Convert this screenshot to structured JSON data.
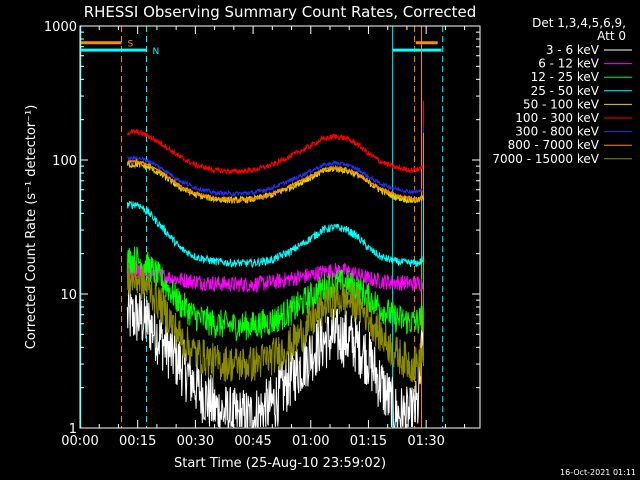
{
  "chart_data": {
    "type": "line",
    "title": "RHESSI Observing Summary Count Rates, Corrected",
    "xlabel": "Start Time (25-Aug-10 23:59:02)",
    "ylabel": "Corrected Count Rate (s⁻¹ detector⁻¹)",
    "xlim": [
      0,
      104
    ],
    "ylim": [
      1,
      1000
    ],
    "yscale": "log",
    "x_ticks": [
      {
        "value": 0,
        "label": "00:00"
      },
      {
        "value": 15,
        "label": "00:15"
      },
      {
        "value": 30,
        "label": "00:30"
      },
      {
        "value": 45,
        "label": "00:45"
      },
      {
        "value": 60,
        "label": "01:00"
      },
      {
        "value": 75,
        "label": "01:15"
      },
      {
        "value": 90,
        "label": "01:30"
      }
    ],
    "y_ticks": [
      {
        "value": 1,
        "label": "1"
      },
      {
        "value": 10,
        "label": "10"
      },
      {
        "value": 100,
        "label": "100"
      },
      {
        "value": 1000,
        "label": "1000"
      }
    ],
    "legend_header": [
      "Det 1,3,4,5,6,9,",
      "Att 0"
    ],
    "legend_position": "right",
    "timestamp": "16-Oct-2021 01:11",
    "data_start": 12.3,
    "data_end": 89.3,
    "x": [
      12.3,
      15,
      18,
      22,
      26,
      30,
      35,
      40,
      45,
      50,
      55,
      60,
      63,
      66,
      69,
      72,
      75,
      78,
      82,
      86,
      88,
      89.3
    ],
    "series": [
      {
        "name": "3 - 6 keV",
        "color": "#ffffff",
        "noise": 0.45,
        "values": [
          6.8,
          6.7,
          6.0,
          4.2,
          3.0,
          2.1,
          1.4,
          1.2,
          1.2,
          1.5,
          2.4,
          3.6,
          4.4,
          4.8,
          4.7,
          4.2,
          3.3,
          2.2,
          1.3,
          1.2,
          1.5,
          6.0
        ]
      },
      {
        "name": "6 - 12 keV",
        "color": "#ff00ff",
        "noise": 0.12,
        "values": [
          14.5,
          15.0,
          14.5,
          13.5,
          12.8,
          12.4,
          12.0,
          11.8,
          11.8,
          12.2,
          13.0,
          13.8,
          14.6,
          15.0,
          14.8,
          14.0,
          13.0,
          12.5,
          12.2,
          12.0,
          12.0,
          12.0
        ]
      },
      {
        "name": "12 - 25 keV",
        "color": "#00ff00",
        "noise": 0.22,
        "values": [
          18.0,
          18.0,
          16.0,
          12.0,
          8.5,
          6.8,
          6.0,
          5.8,
          5.8,
          6.3,
          7.5,
          9.5,
          11.0,
          12.0,
          12.0,
          11.0,
          9.5,
          8.0,
          6.6,
          6.2,
          6.2,
          7.0
        ]
      },
      {
        "name": "25 - 50 keV",
        "color": "#00ffff",
        "noise": 0.06,
        "values": [
          46.0,
          47.0,
          40.0,
          30.0,
          22.0,
          19.0,
          17.5,
          17.0,
          17.0,
          18.0,
          21.0,
          26.0,
          30.0,
          31.5,
          30.5,
          27.0,
          22.0,
          19.0,
          17.5,
          17.0,
          17.0,
          18.0
        ]
      },
      {
        "name": "50 - 100 keV",
        "color": "#e0d000",
        "noise": 0.05,
        "values": [
          92.0,
          93.0,
          88.0,
          75.0,
          62.0,
          55.0,
          51.0,
          50.0,
          51.0,
          55.0,
          63.0,
          74.0,
          82.0,
          86.0,
          84.0,
          78.0,
          68.0,
          60.0,
          53.0,
          50.0,
          50.0,
          52.0
        ]
      },
      {
        "name": "100 - 300 keV",
        "color": "#ff0000",
        "noise": 0.04,
        "values": [
          160.0,
          162.0,
          150.0,
          128.0,
          105.0,
          92.0,
          84.0,
          82.0,
          84.0,
          92.0,
          108.0,
          128.0,
          143.0,
          150.0,
          146.0,
          132.0,
          112.0,
          98.0,
          88.0,
          84.0,
          85.0,
          92.0
        ]
      },
      {
        "name": "300 - 800 keV",
        "color": "#2030ff",
        "noise": 0.03,
        "values": [
          102.0,
          104.0,
          98.0,
          84.0,
          70.0,
          62.0,
          57.0,
          56.0,
          57.0,
          62.0,
          71.0,
          83.0,
          91.0,
          95.0,
          93.0,
          86.0,
          75.0,
          67.0,
          61.0,
          58.0,
          58.0,
          60.0
        ]
      },
      {
        "name": "800 - 7000 keV",
        "color": "#ff8c00",
        "noise": 0.02,
        "values": [
          97.0,
          98.0,
          92.0,
          78.0,
          64.0,
          56.0,
          52.0,
          50.0,
          51.0,
          56.0,
          65.0,
          76.0,
          84.0,
          88.0,
          86.0,
          79.0,
          69.0,
          61.0,
          55.0,
          52.0,
          51.0,
          53.0
        ]
      },
      {
        "name": "7000 - 15000 keV",
        "color": "#8b8b00",
        "noise": 0.28,
        "values": [
          12.5,
          13.0,
          11.0,
          7.5,
          4.8,
          3.6,
          3.1,
          3.0,
          3.0,
          3.4,
          4.2,
          6.0,
          7.8,
          9.0,
          9.2,
          8.4,
          6.8,
          5.0,
          3.6,
          3.0,
          3.0,
          3.6
        ]
      }
    ],
    "annotations": [
      {
        "label": "S",
        "color": "#ff8c00",
        "line_style": "dashed",
        "x_lines": [
          10.8,
          87.0
        ],
        "bar_level": 750,
        "bar_segments": [
          [
            0.2,
            10.8
          ],
          [
            87.3,
            93.0
          ]
        ]
      },
      {
        "label": "N",
        "color": "#00ffff",
        "line_style": "dashed",
        "x_lines": [
          17.3,
          94.3
        ],
        "bar_level": 660,
        "bar_segments": [
          [
            0.2,
            17.3
          ],
          [
            81.3,
            94.0
          ]
        ]
      },
      {
        "label": "",
        "color": "#00ffff",
        "line_style": "solid",
        "x_lines": [
          0.2,
          81.3
        ]
      },
      {
        "label": "",
        "color": "#ff8c00",
        "line_style": "solid",
        "x_lines": [
          88.8
        ]
      }
    ]
  }
}
